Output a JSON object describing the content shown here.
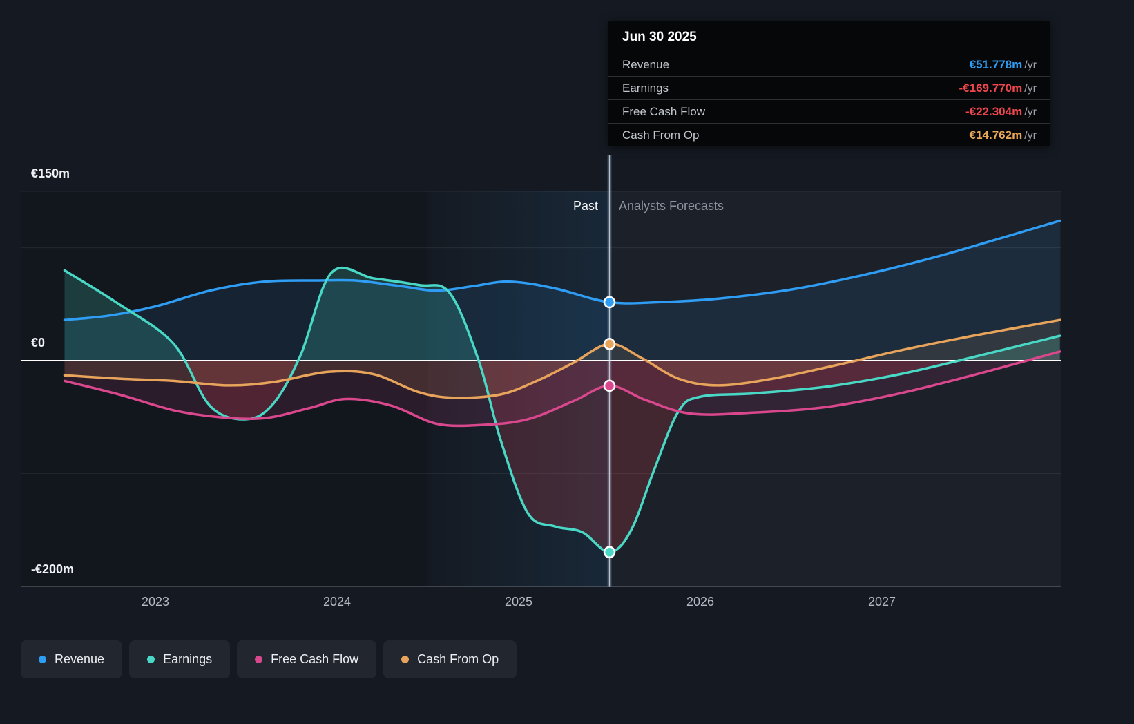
{
  "tooltip": {
    "date": "Jun 30 2025",
    "rows": [
      {
        "label": "Revenue",
        "value": "€51.778m",
        "suffix": "/yr",
        "color": "#2f9df4"
      },
      {
        "label": "Earnings",
        "value": "-€169.770m",
        "suffix": "/yr",
        "color": "#f0474e"
      },
      {
        "label": "Free Cash Flow",
        "value": "-€22.304m",
        "suffix": "/yr",
        "color": "#f0474e"
      },
      {
        "label": "Cash From Op",
        "value": "€14.762m",
        "suffix": "/yr",
        "color": "#e9a75a"
      }
    ]
  },
  "labels": {
    "past": "Past",
    "forecast": "Analysts Forecasts"
  },
  "legend": {
    "items": [
      {
        "label": "Revenue",
        "color": "#2f9df4"
      },
      {
        "label": "Earnings",
        "color": "#48d8c5"
      },
      {
        "label": "Free Cash Flow",
        "color": "#d9478d"
      },
      {
        "label": "Cash From Op",
        "color": "#e8a45b"
      }
    ]
  },
  "chart_data": {
    "type": "line",
    "title": "Past and forecast earnings and revenue",
    "currency_unit": "€m",
    "ylim": [
      -200,
      150
    ],
    "xlim": [
      2022.5,
      2027.98
    ],
    "divider_x": 2025.5,
    "gridline_values": [
      150,
      100,
      0,
      -100,
      -200
    ],
    "y_ticks": [
      {
        "label": "€150m",
        "value": 150
      },
      {
        "label": "€0",
        "value": 0
      },
      {
        "label": "-€200m",
        "value": -200
      }
    ],
    "x_ticks": [
      2023,
      2024,
      2025,
      2026,
      2027
    ],
    "legend_position": "bottom-left",
    "series": [
      {
        "name": "Revenue",
        "color": "#2f9df4",
        "x": [
          2022.5,
          2022.75,
          2023.0,
          2023.3,
          2023.6,
          2023.9,
          2024.1,
          2024.35,
          2024.55,
          2024.75,
          2024.95,
          2025.2,
          2025.5,
          2025.8,
          2026.1,
          2026.5,
          2026.9,
          2027.3,
          2027.6,
          2027.98
        ],
        "values": [
          36,
          40,
          48,
          62,
          70,
          71,
          71,
          66,
          62,
          66,
          70,
          64,
          51.778,
          52,
          55,
          63,
          76,
          92,
          106,
          124
        ]
      },
      {
        "name": "Earnings",
        "color": "#48d8c5",
        "x": [
          2022.5,
          2022.8,
          2023.1,
          2023.3,
          2023.5,
          2023.65,
          2023.8,
          2023.97,
          2024.2,
          2024.45,
          2024.62,
          2024.78,
          2024.9,
          2025.05,
          2025.2,
          2025.35,
          2025.5,
          2025.62,
          2025.75,
          2025.88,
          2026.0,
          2026.3,
          2026.7,
          2027.1,
          2027.5,
          2027.98
        ],
        "values": [
          80,
          50,
          15,
          -40,
          -52,
          -38,
          5,
          78,
          73,
          67,
          60,
          0,
          -70,
          -135,
          -147,
          -152,
          -169.77,
          -150,
          -95,
          -45,
          -32,
          -29,
          -23,
          -12,
          3,
          22
        ]
      },
      {
        "name": "Free Cash Flow",
        "color": "#d9478d",
        "x": [
          2022.5,
          2022.8,
          2023.1,
          2023.35,
          2023.6,
          2023.85,
          2024.05,
          2024.3,
          2024.55,
          2024.8,
          2025.05,
          2025.3,
          2025.5,
          2025.7,
          2025.95,
          2026.3,
          2026.7,
          2027.1,
          2027.5,
          2027.98
        ],
        "values": [
          -18,
          -30,
          -44,
          -50,
          -51,
          -42,
          -34,
          -40,
          -56,
          -57,
          -52,
          -36,
          -22.304,
          -35,
          -47,
          -46,
          -41,
          -29,
          -13,
          8
        ]
      },
      {
        "name": "Cash From Op",
        "color": "#e8a45b",
        "x": [
          2022.5,
          2022.8,
          2023.1,
          2023.4,
          2023.65,
          2023.95,
          2024.2,
          2024.45,
          2024.65,
          2024.9,
          2025.1,
          2025.3,
          2025.5,
          2025.68,
          2025.88,
          2026.1,
          2026.4,
          2026.75,
          2027.1,
          2027.5,
          2027.98
        ],
        "values": [
          -13,
          -16,
          -18,
          -22,
          -19,
          -10,
          -12,
          -28,
          -33,
          -30,
          -18,
          -2,
          14.762,
          2,
          -16,
          -22,
          -16,
          -4,
          9,
          22,
          36
        ]
      }
    ],
    "markers_at_divider": [
      {
        "series": "Revenue",
        "value": 51.778
      },
      {
        "series": "Cash From Op",
        "value": 14.762
      },
      {
        "series": "Free Cash Flow",
        "value": -22.304
      },
      {
        "series": "Earnings",
        "value": -169.77
      }
    ]
  }
}
